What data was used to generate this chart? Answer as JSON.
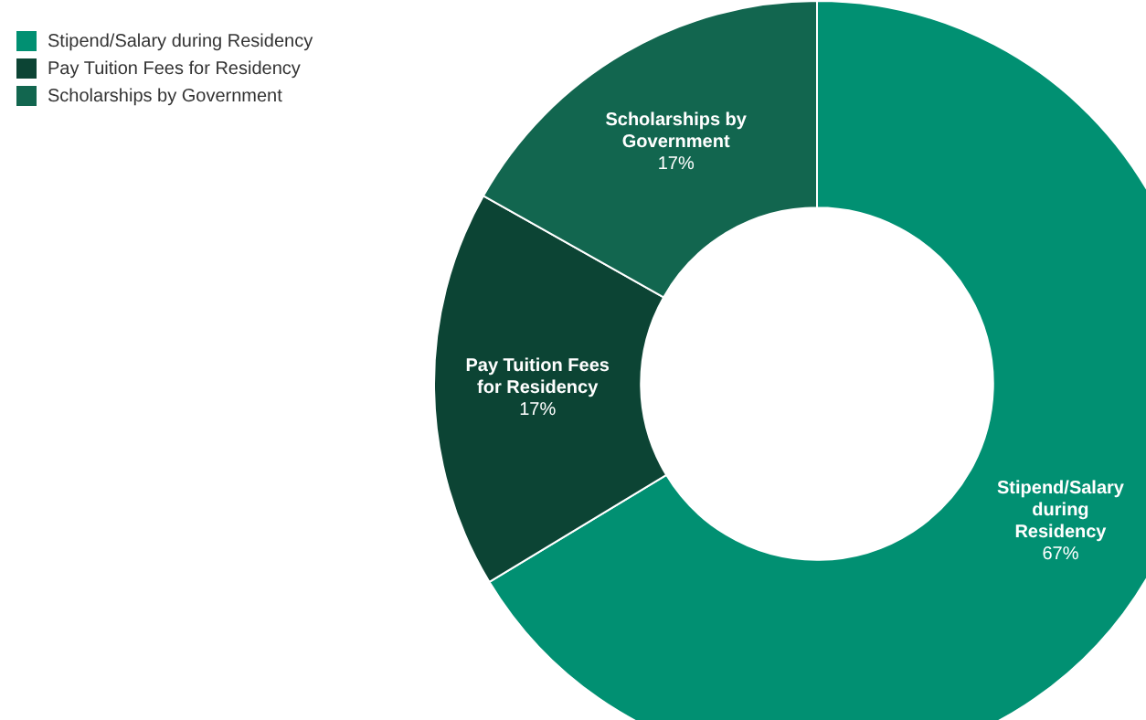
{
  "chart_data": {
    "type": "donut",
    "categories": [
      "Stipend/Salary during Residency",
      "Pay Tuition Fees for Residency",
      "Scholarships by Government"
    ],
    "values": [
      67,
      17,
      17
    ],
    "colors": [
      "#019072",
      "#0c4434",
      "#12664f"
    ],
    "value_labels": [
      "67%",
      "17%",
      "17%"
    ],
    "legend": "top left"
  }
}
